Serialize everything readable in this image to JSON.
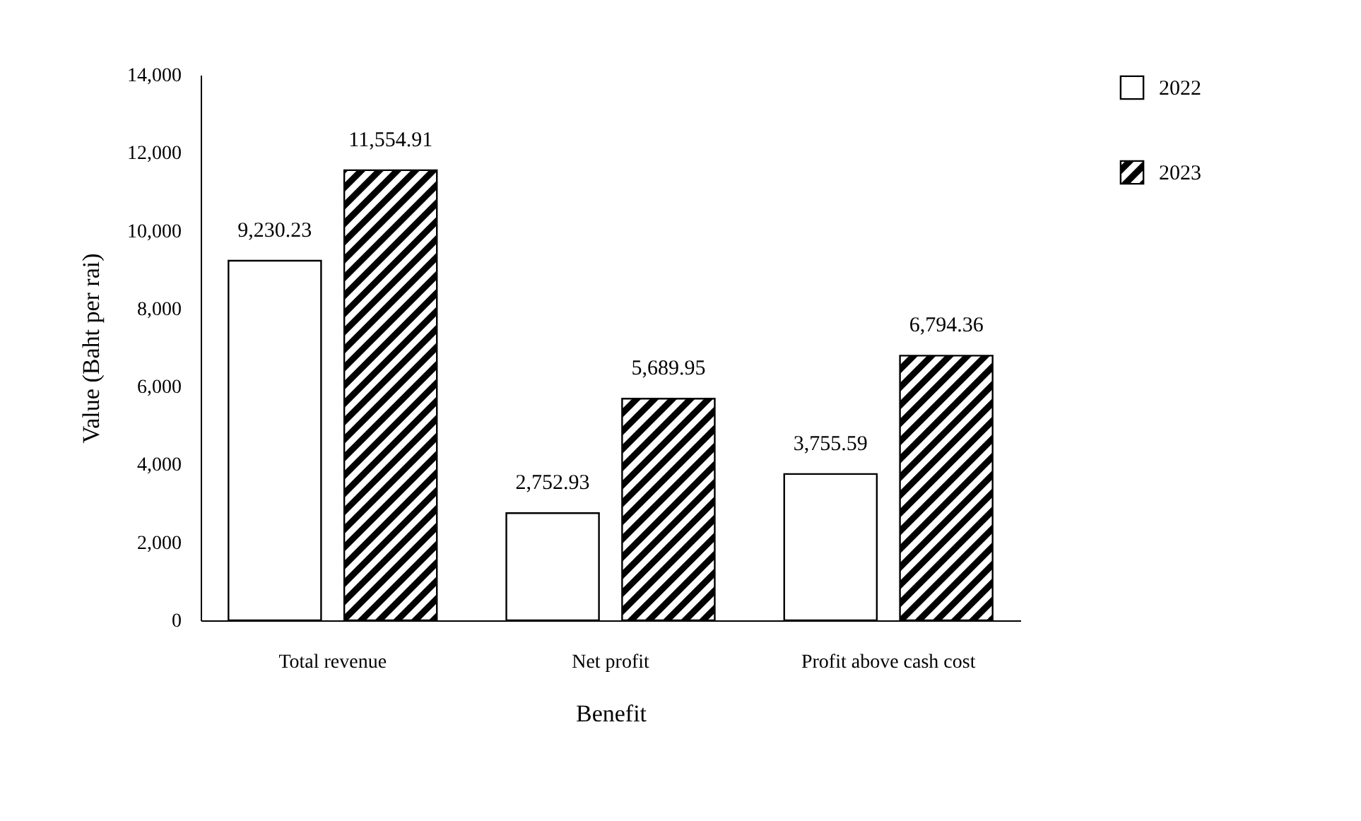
{
  "chart_data": {
    "type": "bar",
    "xlabel": "Benefit",
    "ylabel": "Value (Baht per rai)",
    "categories": [
      "Total revenue",
      "Net profit",
      "Profit above cash cost"
    ],
    "series": [
      {
        "name": "2022",
        "color": "#ffffff",
        "values": [
          9230.23,
          2752.93,
          3755.59
        ],
        "value_labels": [
          "9,230.23",
          "2,752.93",
          "3,755.59"
        ]
      },
      {
        "name": "2023",
        "color": "#000000",
        "values": [
          11554.91,
          5689.95,
          6794.36
        ],
        "value_labels": [
          "11,554.91",
          "5,689.95",
          "6,794.36"
        ]
      }
    ],
    "ylim": [
      0,
      14000
    ],
    "yticks": [
      {
        "value": 0,
        "label": "0"
      },
      {
        "value": 2000,
        "label": "2,000"
      },
      {
        "value": 4000,
        "label": "4,000"
      },
      {
        "value": 6000,
        "label": "6,000"
      },
      {
        "value": 8000,
        "label": "8,000"
      },
      {
        "value": 10000,
        "label": "10,000"
      },
      {
        "value": 12000,
        "label": "12,000"
      },
      {
        "value": 14000,
        "label": "14,000"
      }
    ],
    "grid": false,
    "legend": "right"
  }
}
